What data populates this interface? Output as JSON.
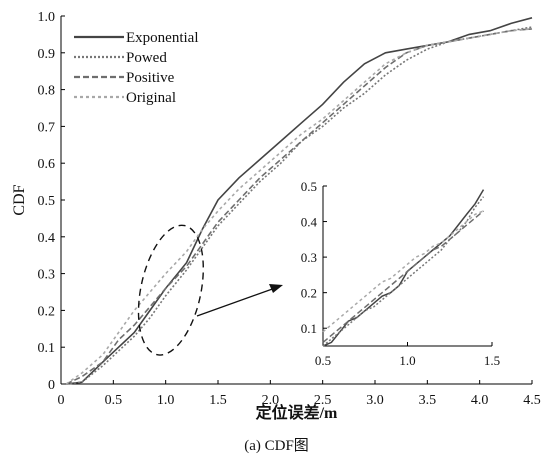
{
  "chart_data": [
    {
      "type": "line",
      "title": "",
      "xlabel": "定位误差/m",
      "ylabel": "CDF",
      "xlim": [
        0,
        4.5
      ],
      "ylim": [
        0,
        1.0
      ],
      "xticks": [
        "0",
        "0.5",
        "1.0",
        "1.5",
        "2.0",
        "2.5",
        "3.0",
        "3.5",
        "4.0",
        "4.5"
      ],
      "yticks": [
        "0",
        "0.1",
        "0.2",
        "0.3",
        "0.4",
        "0.5",
        "0.6",
        "0.7",
        "0.8",
        "0.9",
        "1.0"
      ],
      "grid": false,
      "legend_position": "top-left",
      "series": [
        {
          "name": "Exponential",
          "color": "#444444",
          "dash": "solid",
          "x": [
            0.05,
            0.2,
            0.4,
            0.55,
            0.7,
            0.85,
            1.0,
            1.2,
            1.35,
            1.5,
            1.7,
            1.9,
            2.1,
            2.3,
            2.5,
            2.7,
            2.9,
            3.1,
            3.3,
            3.5,
            3.7,
            3.9,
            4.1,
            4.3,
            4.5
          ],
          "y": [
            0.0,
            0.005,
            0.06,
            0.1,
            0.14,
            0.2,
            0.26,
            0.33,
            0.42,
            0.5,
            0.56,
            0.61,
            0.66,
            0.71,
            0.76,
            0.82,
            0.87,
            0.9,
            0.91,
            0.92,
            0.93,
            0.95,
            0.96,
            0.98,
            0.995
          ]
        },
        {
          "name": "Powed",
          "color": "#777777",
          "dash": "2 2",
          "x": [
            0.05,
            0.2,
            0.4,
            0.55,
            0.7,
            0.85,
            1.0,
            1.2,
            1.35,
            1.5,
            1.7,
            1.9,
            2.1,
            2.3,
            2.5,
            2.7,
            2.9,
            3.1,
            3.3,
            3.5,
            3.7,
            3.9,
            4.1,
            4.3,
            4.5
          ],
          "y": [
            0.0,
            0.005,
            0.05,
            0.09,
            0.13,
            0.18,
            0.24,
            0.31,
            0.37,
            0.43,
            0.49,
            0.55,
            0.6,
            0.66,
            0.7,
            0.75,
            0.79,
            0.84,
            0.88,
            0.91,
            0.93,
            0.94,
            0.95,
            0.96,
            0.97
          ]
        },
        {
          "name": "Positive",
          "color": "#6e6e6e",
          "dash": "6 3",
          "x": [
            0.05,
            0.2,
            0.4,
            0.55,
            0.7,
            0.85,
            1.0,
            1.2,
            1.35,
            1.5,
            1.7,
            1.9,
            2.1,
            2.3,
            2.5,
            2.7,
            2.9,
            3.1,
            3.3,
            3.5,
            3.7,
            3.9,
            4.1,
            4.3,
            4.5
          ],
          "y": [
            0.0,
            0.02,
            0.06,
            0.12,
            0.16,
            0.21,
            0.26,
            0.32,
            0.38,
            0.44,
            0.5,
            0.56,
            0.61,
            0.66,
            0.71,
            0.76,
            0.81,
            0.86,
            0.9,
            0.92,
            0.93,
            0.94,
            0.95,
            0.96,
            0.965
          ]
        },
        {
          "name": "Original",
          "color": "#a8a8a8",
          "dash": "3 3",
          "x": [
            0.05,
            0.2,
            0.4,
            0.55,
            0.7,
            0.85,
            1.0,
            1.2,
            1.35,
            1.5,
            1.7,
            1.9,
            2.1,
            2.3,
            2.5,
            2.7,
            2.9,
            3.1,
            3.3,
            3.5,
            3.7,
            3.9,
            4.1,
            4.3,
            4.5
          ],
          "y": [
            0.0,
            0.03,
            0.08,
            0.14,
            0.2,
            0.25,
            0.3,
            0.36,
            0.42,
            0.47,
            0.53,
            0.58,
            0.63,
            0.68,
            0.72,
            0.77,
            0.82,
            0.87,
            0.9,
            0.92,
            0.93,
            0.94,
            0.95,
            0.96,
            0.965
          ]
        }
      ]
    },
    {
      "type": "line",
      "title": "",
      "xlabel": "",
      "ylabel": "",
      "xlim": [
        0.5,
        1.5
      ],
      "ylim": [
        0.05,
        0.5
      ],
      "xticks": [
        "0.5",
        "1.0",
        "1.5"
      ],
      "yticks": [
        "0.1",
        "0.2",
        "0.3",
        "0.4",
        "0.5"
      ],
      "grid": false,
      "series": [
        {
          "color": "#444444",
          "dash": "solid",
          "x": [
            0.5,
            0.55,
            0.6,
            0.65,
            0.7,
            0.75,
            0.8,
            0.85,
            0.9,
            0.95,
            1.0,
            1.05,
            1.1,
            1.15,
            1.2,
            1.25,
            1.3,
            1.35,
            1.4,
            1.45
          ],
          "y": [
            0.05,
            0.06,
            0.09,
            0.12,
            0.13,
            0.15,
            0.17,
            0.19,
            0.2,
            0.22,
            0.26,
            0.28,
            0.3,
            0.32,
            0.34,
            0.36,
            0.39,
            0.42,
            0.45,
            0.49
          ]
        },
        {
          "color": "#777777",
          "dash": "2 2",
          "x": [
            0.5,
            0.55,
            0.6,
            0.65,
            0.7,
            0.75,
            0.8,
            0.85,
            0.9,
            0.95,
            1.0,
            1.05,
            1.1,
            1.15,
            1.2,
            1.25,
            1.3,
            1.35,
            1.4,
            1.45
          ],
          "y": [
            0.05,
            0.07,
            0.09,
            0.11,
            0.13,
            0.15,
            0.16,
            0.18,
            0.2,
            0.22,
            0.24,
            0.26,
            0.28,
            0.3,
            0.32,
            0.35,
            0.37,
            0.4,
            0.44,
            0.47
          ]
        },
        {
          "color": "#6e6e6e",
          "dash": "6 3",
          "x": [
            0.5,
            0.55,
            0.6,
            0.65,
            0.7,
            0.75,
            0.8,
            0.85,
            0.9,
            0.95,
            1.0,
            1.05,
            1.1,
            1.15,
            1.2,
            1.25,
            1.3,
            1.35,
            1.4,
            1.45
          ],
          "y": [
            0.06,
            0.08,
            0.1,
            0.12,
            0.14,
            0.16,
            0.18,
            0.2,
            0.22,
            0.24,
            0.26,
            0.28,
            0.3,
            0.32,
            0.33,
            0.35,
            0.37,
            0.39,
            0.41,
            0.43
          ]
        },
        {
          "color": "#a8a8a8",
          "dash": "3 3",
          "x": [
            0.5,
            0.55,
            0.6,
            0.65,
            0.7,
            0.75,
            0.8,
            0.85,
            0.9,
            0.95,
            1.0,
            1.05,
            1.1,
            1.15,
            1.2,
            1.25,
            1.3,
            1.35,
            1.4,
            1.45
          ],
          "y": [
            0.09,
            0.11,
            0.13,
            0.15,
            0.17,
            0.19,
            0.21,
            0.23,
            0.24,
            0.26,
            0.28,
            0.3,
            0.31,
            0.33,
            0.34,
            0.36,
            0.38,
            0.4,
            0.42,
            0.43
          ]
        }
      ]
    }
  ],
  "caption": "(a) CDF图"
}
